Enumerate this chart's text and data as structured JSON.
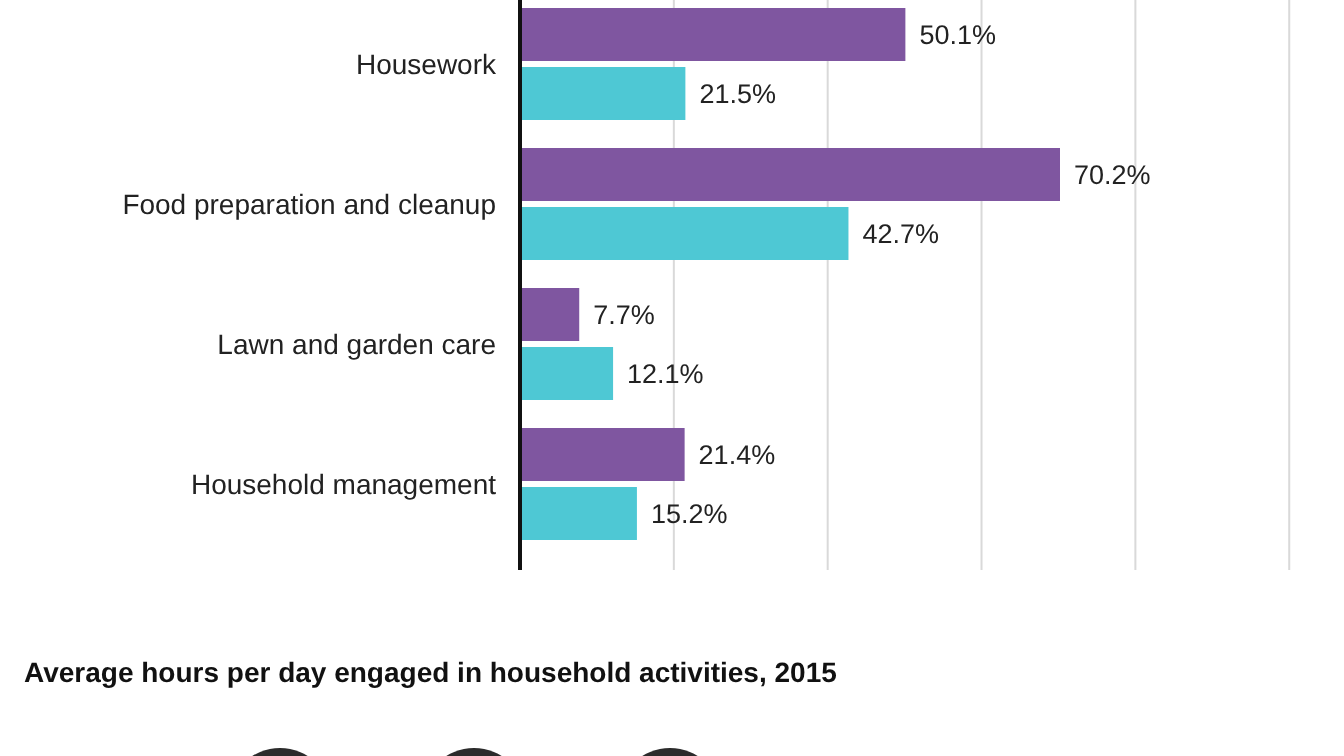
{
  "chart_data": {
    "type": "bar",
    "orientation": "horizontal",
    "categories": [
      "Housework",
      "Food preparation and cleanup",
      "Lawn and garden care",
      "Household management"
    ],
    "series": [
      {
        "color": "#7f56a0",
        "values": [
          50.1,
          70.2,
          7.7,
          21.4
        ],
        "value_labels": [
          "50.1%",
          "70.2%",
          "7.7%",
          "21.4%"
        ]
      },
      {
        "color": "#4ec8d4",
        "values": [
          21.5,
          42.7,
          12.1,
          15.2
        ],
        "value_labels": [
          "21.5%",
          "42.7%",
          "12.1%",
          "15.2%"
        ]
      }
    ],
    "xticks": [
      {
        "value": 20,
        "label": null
      },
      {
        "value": 40,
        "label": null
      },
      {
        "value": 60,
        "label": null
      },
      {
        "value": 80,
        "label": null
      },
      {
        "value": 100,
        "label": null
      }
    ],
    "tick_labels": "y",
    "grid": "x",
    "annotations": [
      "Average hours per day engaged in household activities, 2015"
    ]
  }
}
